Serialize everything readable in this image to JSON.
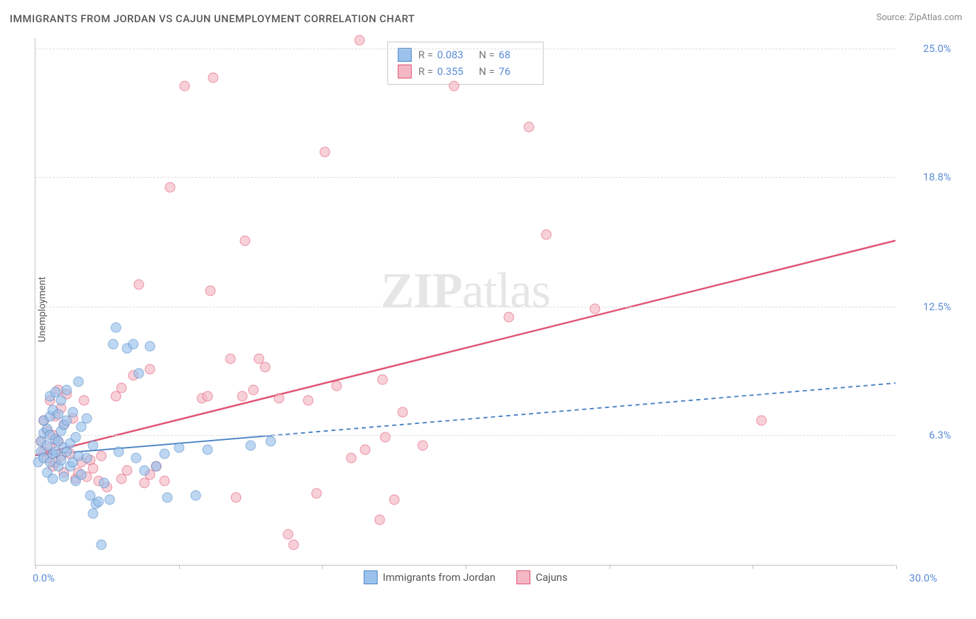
{
  "title": "IMMIGRANTS FROM JORDAN VS CAJUN UNEMPLOYMENT CORRELATION CHART",
  "source_prefix": "Source: ",
  "source_name": "ZipAtlas.com",
  "watermark_a": "ZIP",
  "watermark_b": "atlas",
  "chart": {
    "type": "scatter",
    "background_color": "#ffffff",
    "grid_color": "#dcdcdc",
    "axis_color": "#c0c0c0",
    "tick_label_color": "#5a8cd6",
    "tick_fontsize": 15,
    "y_axis_title": "Unemployment",
    "y_label_fontsize": 14,
    "xlim": [
      0,
      30
    ],
    "ylim": [
      0,
      25.5
    ],
    "y_gridlines": [
      6.3,
      12.5,
      18.8,
      25.0
    ],
    "y_tick_labels": [
      "6.3%",
      "12.5%",
      "18.8%",
      "25.0%"
    ],
    "x_ticks_at": [
      0,
      5,
      10,
      15,
      20,
      25,
      30
    ],
    "x_label_min": "0.0%",
    "x_label_max": "30.0%",
    "marker_size": 15,
    "marker_opacity": 0.65,
    "series": [
      {
        "name": "Immigrants from Jordan",
        "fill_color": "#9ac2ec",
        "border_color": "#4e86c5",
        "r_value": "0.083",
        "n_value": "68",
        "trend": {
          "y_at_x0": 5.3,
          "y_at_x30": 8.8,
          "line_width": 2,
          "dash": "6,5",
          "solid_until_x": 8.2
        },
        "points": [
          [
            0.1,
            5.0
          ],
          [
            0.2,
            5.5
          ],
          [
            0.2,
            6.0
          ],
          [
            0.3,
            6.4
          ],
          [
            0.3,
            5.2
          ],
          [
            0.3,
            7.0
          ],
          [
            0.4,
            5.8
          ],
          [
            0.4,
            6.6
          ],
          [
            0.4,
            4.5
          ],
          [
            0.5,
            7.2
          ],
          [
            0.5,
            5.0
          ],
          [
            0.5,
            8.2
          ],
          [
            0.5,
            6.3
          ],
          [
            0.6,
            5.4
          ],
          [
            0.6,
            7.5
          ],
          [
            0.6,
            4.2
          ],
          [
            0.7,
            6.1
          ],
          [
            0.7,
            8.4
          ],
          [
            0.7,
            5.5
          ],
          [
            0.8,
            6.0
          ],
          [
            0.8,
            7.3
          ],
          [
            0.8,
            4.8
          ],
          [
            0.9,
            6.5
          ],
          [
            0.9,
            5.1
          ],
          [
            0.9,
            8.0
          ],
          [
            1.0,
            5.7
          ],
          [
            1.0,
            6.8
          ],
          [
            1.0,
            4.3
          ],
          [
            1.1,
            5.5
          ],
          [
            1.1,
            7.0
          ],
          [
            1.1,
            8.5
          ],
          [
            1.2,
            4.8
          ],
          [
            1.2,
            5.9
          ],
          [
            1.3,
            7.4
          ],
          [
            1.3,
            5.0
          ],
          [
            1.4,
            6.2
          ],
          [
            1.4,
            4.1
          ],
          [
            1.5,
            8.9
          ],
          [
            1.5,
            5.3
          ],
          [
            1.6,
            6.7
          ],
          [
            1.6,
            4.4
          ],
          [
            1.8,
            5.2
          ],
          [
            1.8,
            7.1
          ],
          [
            1.9,
            3.4
          ],
          [
            2.0,
            5.8
          ],
          [
            2.0,
            2.5
          ],
          [
            2.1,
            3.0
          ],
          [
            2.2,
            3.1
          ],
          [
            2.3,
            1.0
          ],
          [
            2.4,
            4.0
          ],
          [
            2.6,
            3.2
          ],
          [
            2.7,
            10.7
          ],
          [
            2.8,
            11.5
          ],
          [
            2.9,
            5.5
          ],
          [
            3.2,
            10.5
          ],
          [
            3.4,
            10.7
          ],
          [
            3.5,
            5.2
          ],
          [
            3.6,
            9.3
          ],
          [
            3.8,
            4.6
          ],
          [
            4.0,
            10.6
          ],
          [
            4.2,
            4.8
          ],
          [
            4.5,
            5.4
          ],
          [
            4.6,
            3.3
          ],
          [
            5.0,
            5.7
          ],
          [
            5.6,
            3.4
          ],
          [
            6.0,
            5.6
          ],
          [
            7.5,
            5.8
          ],
          [
            8.2,
            6.0
          ]
        ]
      },
      {
        "name": "Cajuns",
        "fill_color": "#f3b8c4",
        "border_color": "#e15372",
        "r_value": "0.355",
        "n_value": "76",
        "trend": {
          "y_at_x0": 5.3,
          "y_at_x30": 15.7,
          "line_width": 2.5,
          "dash": "none",
          "solid_until_x": 30
        },
        "points": [
          [
            0.2,
            6.0
          ],
          [
            0.3,
            5.5
          ],
          [
            0.3,
            7.0
          ],
          [
            0.4,
            5.2
          ],
          [
            0.4,
            6.5
          ],
          [
            0.5,
            5.7
          ],
          [
            0.5,
            8.0
          ],
          [
            0.6,
            4.8
          ],
          [
            0.6,
            6.3
          ],
          [
            0.7,
            7.2
          ],
          [
            0.7,
            5.0
          ],
          [
            0.8,
            8.5
          ],
          [
            0.8,
            6.0
          ],
          [
            0.9,
            5.3
          ],
          [
            0.9,
            7.6
          ],
          [
            1.0,
            4.5
          ],
          [
            1.0,
            6.8
          ],
          [
            1.1,
            8.3
          ],
          [
            1.2,
            5.4
          ],
          [
            1.3,
            7.1
          ],
          [
            1.4,
            4.2
          ],
          [
            1.5,
            4.5
          ],
          [
            1.6,
            5.0
          ],
          [
            1.7,
            8.0
          ],
          [
            1.8,
            4.3
          ],
          [
            1.9,
            5.1
          ],
          [
            2.0,
            4.7
          ],
          [
            2.2,
            4.1
          ],
          [
            2.3,
            5.3
          ],
          [
            2.5,
            3.8
          ],
          [
            2.8,
            8.2
          ],
          [
            3.0,
            4.2
          ],
          [
            3.0,
            8.6
          ],
          [
            3.2,
            4.6
          ],
          [
            3.4,
            9.2
          ],
          [
            3.6,
            13.6
          ],
          [
            3.8,
            4.0
          ],
          [
            4.0,
            4.4
          ],
          [
            4.0,
            9.5
          ],
          [
            4.2,
            4.8
          ],
          [
            4.5,
            4.1
          ],
          [
            4.7,
            18.3
          ],
          [
            5.2,
            23.2
          ],
          [
            5.8,
            8.1
          ],
          [
            6.0,
            8.2
          ],
          [
            6.1,
            13.3
          ],
          [
            6.2,
            23.6
          ],
          [
            6.8,
            10.0
          ],
          [
            7.0,
            3.3
          ],
          [
            7.2,
            8.2
          ],
          [
            7.3,
            15.7
          ],
          [
            7.6,
            8.5
          ],
          [
            7.8,
            10.0
          ],
          [
            8.0,
            9.6
          ],
          [
            8.5,
            8.1
          ],
          [
            8.8,
            1.5
          ],
          [
            9.0,
            1.0
          ],
          [
            9.5,
            8.0
          ],
          [
            9.8,
            3.5
          ],
          [
            10.1,
            20.0
          ],
          [
            10.5,
            8.7
          ],
          [
            11.0,
            5.2
          ],
          [
            11.3,
            25.4
          ],
          [
            11.5,
            5.6
          ],
          [
            12.0,
            2.2
          ],
          [
            12.1,
            9.0
          ],
          [
            12.2,
            6.2
          ],
          [
            12.5,
            3.2
          ],
          [
            12.8,
            7.4
          ],
          [
            13.5,
            5.8
          ],
          [
            14.6,
            23.2
          ],
          [
            16.5,
            12.0
          ],
          [
            17.2,
            21.2
          ],
          [
            17.8,
            16.0
          ],
          [
            19.5,
            12.4
          ],
          [
            25.3,
            7.0
          ]
        ]
      }
    ],
    "bottom_legend": [
      {
        "swatch_fill": "#9ac2ec",
        "swatch_border": "#4e86c5",
        "label": "Immigrants from Jordan"
      },
      {
        "swatch_fill": "#f3b8c4",
        "swatch_border": "#e15372",
        "label": "Cajuns"
      }
    ]
  }
}
